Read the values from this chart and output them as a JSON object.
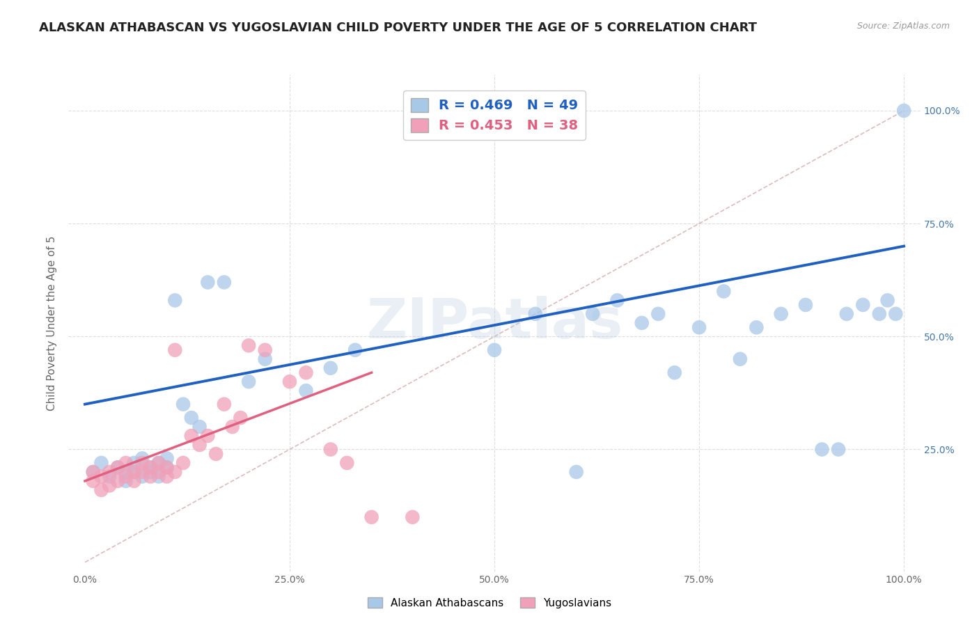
{
  "title": "ALASKAN ATHABASCAN VS YUGOSLAVIAN CHILD POVERTY UNDER THE AGE OF 5 CORRELATION CHART",
  "source": "Source: ZipAtlas.com",
  "ylabel": "Child Poverty Under the Age of 5",
  "xlim": [
    -0.02,
    1.02
  ],
  "ylim": [
    -0.02,
    1.08
  ],
  "xtick_labels": [
    "0.0%",
    "25.0%",
    "50.0%",
    "75.0%",
    "100.0%"
  ],
  "xtick_vals": [
    0.0,
    0.25,
    0.5,
    0.75,
    1.0
  ],
  "ytick_labels": [
    "25.0%",
    "50.0%",
    "75.0%",
    "100.0%"
  ],
  "ytick_vals": [
    0.25,
    0.5,
    0.75,
    1.0
  ],
  "blue_R": 0.469,
  "blue_N": 49,
  "pink_R": 0.453,
  "pink_N": 38,
  "blue_color": "#A8C8E8",
  "pink_color": "#F0A0B8",
  "blue_line_color": "#2060C0",
  "pink_line_color": "#E06080",
  "diagonal_color": "#BBBBBB",
  "watermark": "ZIPatlas",
  "legend_label_blue": "Alaskan Athabascans",
  "legend_label_pink": "Yugoslavians",
  "blue_scatter_x": [
    0.01,
    0.02,
    0.03,
    0.04,
    0.05,
    0.05,
    0.06,
    0.06,
    0.07,
    0.07,
    0.08,
    0.08,
    0.09,
    0.09,
    0.1,
    0.1,
    0.11,
    0.12,
    0.13,
    0.14,
    0.15,
    0.17,
    0.2,
    0.22,
    0.27,
    0.3,
    0.33,
    0.5,
    0.55,
    0.62,
    0.65,
    0.68,
    0.7,
    0.72,
    0.75,
    0.78,
    0.82,
    0.85,
    0.88,
    0.9,
    0.92,
    0.93,
    0.95,
    0.97,
    0.98,
    0.99,
    1.0,
    0.6,
    0.8
  ],
  "blue_scatter_y": [
    0.2,
    0.22,
    0.19,
    0.21,
    0.2,
    0.18,
    0.22,
    0.2,
    0.19,
    0.23,
    0.21,
    0.2,
    0.22,
    0.19,
    0.21,
    0.23,
    0.58,
    0.35,
    0.32,
    0.3,
    0.62,
    0.62,
    0.4,
    0.45,
    0.38,
    0.43,
    0.47,
    0.47,
    0.55,
    0.55,
    0.58,
    0.53,
    0.55,
    0.42,
    0.52,
    0.6,
    0.52,
    0.55,
    0.57,
    0.25,
    0.25,
    0.55,
    0.57,
    0.55,
    0.58,
    0.55,
    1.0,
    0.2,
    0.45
  ],
  "pink_scatter_x": [
    0.01,
    0.01,
    0.02,
    0.02,
    0.03,
    0.03,
    0.04,
    0.04,
    0.05,
    0.05,
    0.06,
    0.06,
    0.07,
    0.07,
    0.08,
    0.08,
    0.09,
    0.09,
    0.1,
    0.1,
    0.11,
    0.11,
    0.12,
    0.13,
    0.14,
    0.15,
    0.16,
    0.17,
    0.18,
    0.19,
    0.2,
    0.22,
    0.25,
    0.27,
    0.3,
    0.32,
    0.35,
    0.4
  ],
  "pink_scatter_y": [
    0.2,
    0.18,
    0.16,
    0.19,
    0.17,
    0.2,
    0.18,
    0.21,
    0.19,
    0.22,
    0.2,
    0.18,
    0.2,
    0.22,
    0.19,
    0.21,
    0.2,
    0.22,
    0.19,
    0.21,
    0.47,
    0.2,
    0.22,
    0.28,
    0.26,
    0.28,
    0.24,
    0.35,
    0.3,
    0.32,
    0.48,
    0.47,
    0.4,
    0.42,
    0.25,
    0.22,
    0.1,
    0.1
  ],
  "blue_line_x": [
    0.0,
    1.0
  ],
  "blue_line_y": [
    0.35,
    0.7
  ],
  "pink_line_x": [
    0.0,
    0.35
  ],
  "pink_line_y": [
    0.18,
    0.42
  ],
  "bg_color": "#FFFFFF",
  "plot_bg_color": "#FFFFFF",
  "grid_color": "#DDDDDD",
  "title_fontsize": 13,
  "label_fontsize": 11,
  "tick_fontsize": 10,
  "legend_fontsize": 13
}
